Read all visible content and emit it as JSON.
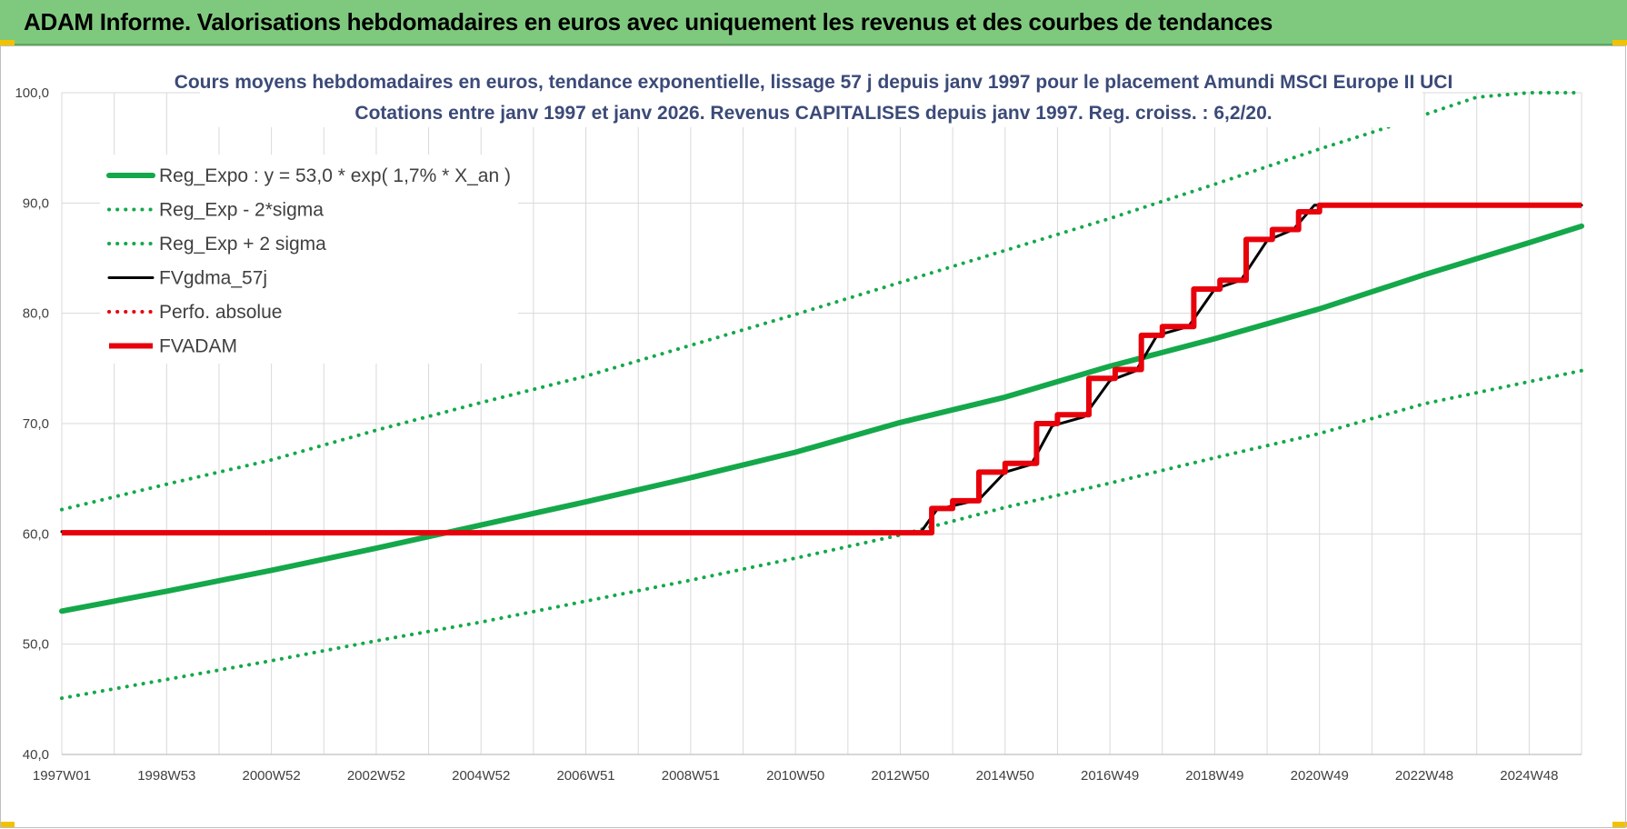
{
  "banner": {
    "title": "ADAM Informe. Valorisations hebdomadaires en euros avec uniquement les revenus et des courbes de tendances"
  },
  "colors": {
    "banner": "#7fc97f",
    "green": "#14a84a",
    "red": "#e8000b",
    "black": "#000000",
    "title": "#3b4a78",
    "grid": "#d9d9d9"
  },
  "chart_data": {
    "type": "line",
    "title": [
      "Cours moyens hebdomadaires en euros, tendance exponentielle, lissage 57 j depuis janv 1997 pour le placement Amundi MSCI Europe II UCI",
      "Cotations entre janv 1997 et janv 2026. Revenus CAPITALISES depuis janv 1997. Reg. croiss. : 6,2/20."
    ],
    "xlabel": "",
    "ylabel": "",
    "x_range": [
      1997.0,
      2026.0
    ],
    "ylim": [
      40,
      100
    ],
    "y_ticks": [
      "40,0",
      "50,0",
      "60,0",
      "70,0",
      "80,0",
      "90,0",
      "100,0"
    ],
    "y_tick_values": [
      40,
      50,
      60,
      70,
      80,
      90,
      100
    ],
    "x_ticks": [
      {
        "label": "1997W01",
        "x": 1997.0
      },
      {
        "label": "1998W53",
        "x": 1999.0
      },
      {
        "label": "2000W52",
        "x": 2001.0
      },
      {
        "label": "2002W52",
        "x": 2003.0
      },
      {
        "label": "2004W52",
        "x": 2005.0
      },
      {
        "label": "2006W51",
        "x": 2007.0
      },
      {
        "label": "2008W51",
        "x": 2009.0
      },
      {
        "label": "2010W50",
        "x": 2011.0
      },
      {
        "label": "2012W50",
        "x": 2013.0
      },
      {
        "label": "2014W50",
        "x": 2015.0
      },
      {
        "label": "2016W49",
        "x": 2017.0
      },
      {
        "label": "2018W49",
        "x": 2019.0
      },
      {
        "label": "2020W49",
        "x": 2021.0
      },
      {
        "label": "2022W48",
        "x": 2023.0
      },
      {
        "label": "2024W48",
        "x": 2025.0
      }
    ],
    "grid": true,
    "legend": {
      "placement": "top-left"
    },
    "series": [
      {
        "name": "Reg_Expo : y = 53,0 * exp( 1,7% *  X_an )",
        "style": "solid-thick",
        "color": "#14a84a",
        "x": [
          1997,
          1999,
          2001,
          2003,
          2005,
          2007,
          2009,
          2011,
          2013,
          2015,
          2017,
          2019,
          2021,
          2023,
          2025,
          2026
        ],
        "y": [
          53.0,
          54.8,
          56.7,
          58.7,
          60.8,
          62.9,
          65.1,
          67.4,
          70.1,
          72.4,
          75.2,
          77.7,
          80.4,
          83.5,
          86.4,
          87.9
        ]
      },
      {
        "name": "Reg_Exp - 2*sigma",
        "style": "dotted",
        "color": "#14a84a",
        "x": [
          1997,
          1999,
          2001,
          2003,
          2005,
          2007,
          2009,
          2011,
          2013,
          2015,
          2017,
          2019,
          2021,
          2023,
          2025,
          2026
        ],
        "y": [
          45.1,
          46.8,
          48.5,
          50.3,
          52.0,
          53.9,
          55.8,
          57.8,
          59.9,
          62.4,
          64.6,
          66.9,
          69.1,
          71.8,
          73.8,
          74.8
        ]
      },
      {
        "name": "Reg_Exp + 2 sigma",
        "style": "dotted",
        "color": "#14a84a",
        "x": [
          1997,
          1999,
          2001,
          2003,
          2005,
          2007,
          2009,
          2011,
          2013,
          2015,
          2017,
          2019,
          2021,
          2022,
          2023,
          2024,
          2025,
          2026
        ],
        "y": [
          62.2,
          64.5,
          66.7,
          69.4,
          71.9,
          74.3,
          77.1,
          79.9,
          82.8,
          85.7,
          88.6,
          91.7,
          94.9,
          96.4,
          98.0,
          99.6,
          100.0,
          100.0
        ]
      },
      {
        "name": "FVgdma_57j",
        "style": "solid",
        "color": "#000000",
        "x": [
          1997,
          2013.4,
          2013.7,
          2014.5,
          2015.0,
          2015.5,
          2015.9,
          2016.5,
          2017.0,
          2017.5,
          2017.9,
          2018.5,
          2019.0,
          2019.5,
          2020.0,
          2020.5,
          2020.9,
          2026
        ],
        "y": [
          60.2,
          60.2,
          62.2,
          63.1,
          65.6,
          66.3,
          69.8,
          70.6,
          73.9,
          74.8,
          78.0,
          78.8,
          82.2,
          83.0,
          86.6,
          87.6,
          89.8,
          89.8
        ]
      },
      {
        "name": "Perfo. absolue",
        "style": "dotted",
        "color": "#e8000b",
        "x": [],
        "y": []
      },
      {
        "name": "FVADAM",
        "style": "step-thick",
        "color": "#e8000b",
        "x": [
          1997,
          2013.6,
          2014.0,
          2014.5,
          2015.0,
          2015.6,
          2016.0,
          2016.6,
          2017.1,
          2017.6,
          2018.0,
          2018.6,
          2019.1,
          2019.6,
          2020.1,
          2020.6,
          2021.0,
          2026
        ],
        "y": [
          60.1,
          62.3,
          63.0,
          65.6,
          66.4,
          70.0,
          70.8,
          74.1,
          74.9,
          78.0,
          78.8,
          82.2,
          83.0,
          86.7,
          87.6,
          89.2,
          89.8,
          89.8
        ]
      }
    ]
  }
}
